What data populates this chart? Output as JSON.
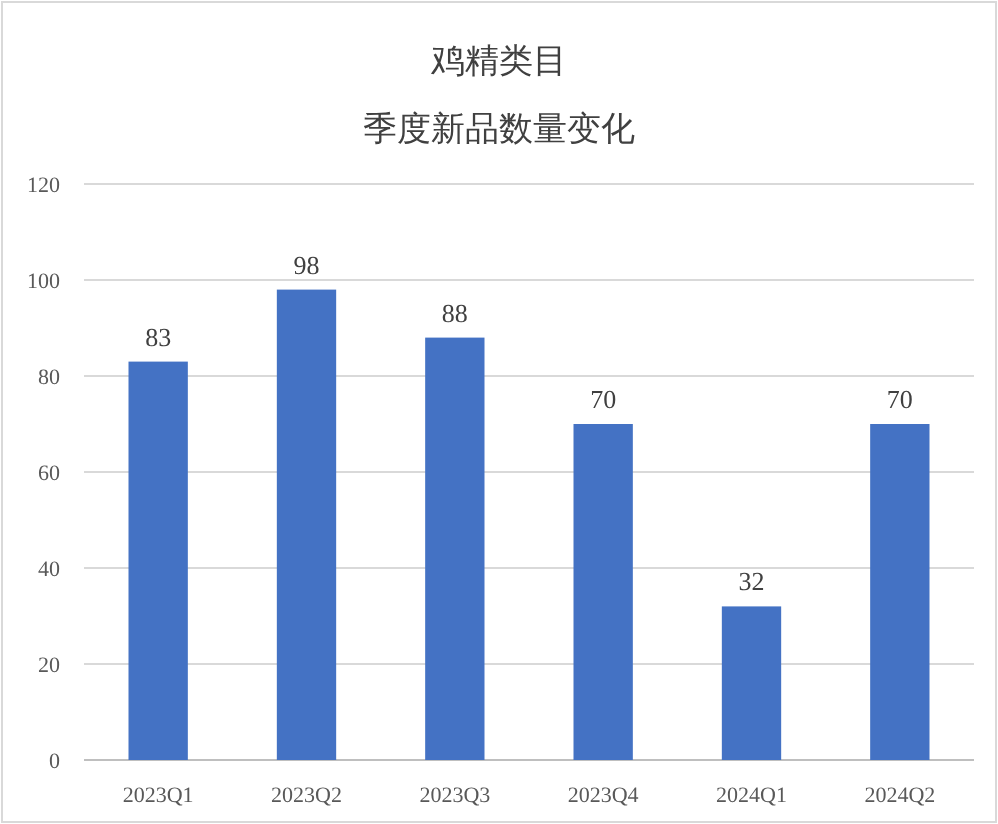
{
  "chart_data": {
    "type": "bar",
    "title": "鸡精类目",
    "subtitle": "季度新品数量变化",
    "categories": [
      "2023Q1",
      "2023Q2",
      "2023Q3",
      "2023Q4",
      "2024Q1",
      "2024Q2"
    ],
    "values": [
      83,
      98,
      88,
      70,
      32,
      70
    ],
    "color": "#4472c4",
    "ylim": [
      0,
      120
    ],
    "yticks": [
      0,
      20,
      40,
      60,
      80,
      100,
      120
    ],
    "grid": "y",
    "data_labels": true
  }
}
